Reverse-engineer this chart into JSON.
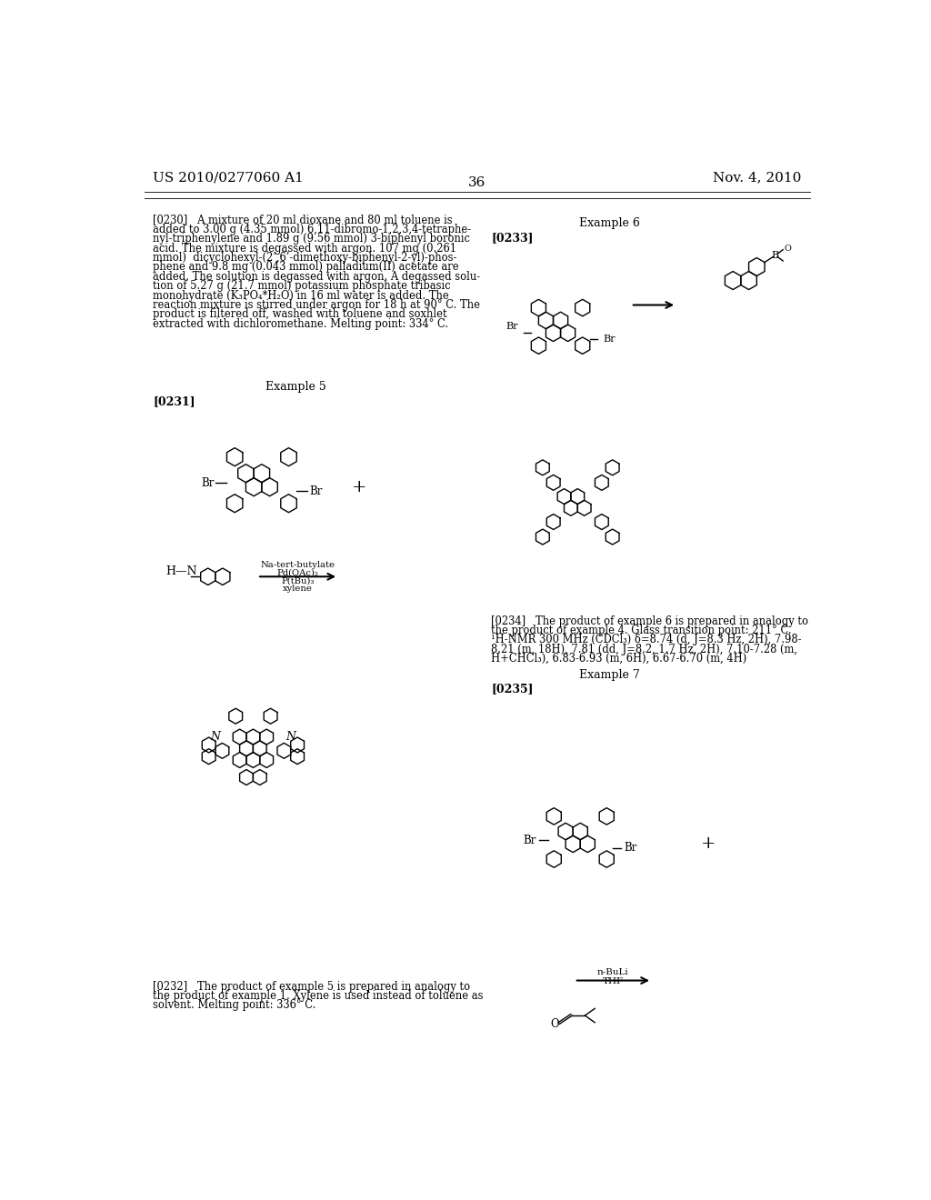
{
  "title_left": "US 2010/0277060 A1",
  "title_right": "Nov. 4, 2010",
  "page_number": "36",
  "background": "#ffffff",
  "para_0230_lines": [
    "[0230]   A mixture of 20 ml dioxane and 80 ml toluene is",
    "added to 3.00 g (4.35 mmol) 6,11-dibromo-1,2,3,4-tetraphe-",
    "nyl-triphenylene and 1.89 g (9.56 mmol) 3-biphenyl boronic",
    "acid. The mixture is degassed with argon. 107 mg (0.261",
    "mmol)  dicyclohexyl-(2’,6’-dimethoxy-biphenyl-2-yl)-phos-",
    "phene and 9.8 mg (0.043 mmol) palladium(II) acetate are",
    "added. The solution is degassed with argon. A degassed solu-",
    "tion of 5.27 g (21.7 mmol) potassium phosphate tribasic",
    "monohydrate (K₃PO₄*H₂O) in 16 ml water is added. The",
    "reaction mixture is stirred under argon for 18 h at 90° C. The",
    "product is filtered off, washed with toluene and soxhlet",
    "extracted with dichloromethane. Melting point: 334° C."
  ],
  "example5_label": "Example 5",
  "para_0231_label": "[0231]",
  "example6_label": "Example 6",
  "para_0233_label": "[0233]",
  "para_0234_lines": [
    "[0234]   The product of example 6 is prepared in analogy to",
    "the product of example 4. Glass transition point: 211° C.",
    "¹H-NMR 300 MHz (CDCl₃) δ=8.74 (d, J=8.3 Hz, 2H), 7.98-",
    "8.21 (m, 18H), 7.81 (dd, J=8.2, 1.7 Hz, 2H), 7.10-7.28 (m,",
    "H+CHCl₃), 6.83-6.93 (m, 6H), 6.67-6.70 (m, 4H)"
  ],
  "example7_label": "Example 7",
  "para_0235_label": "[0235]",
  "para_0232_lines": [
    "[0232]   The product of example 5 is prepared in analogy to",
    "the product of example 1. Xylene is used instead of toluene as",
    "solvent. Melting point: 336° C."
  ],
  "arrow1_labels": [
    "Na-tert-butylate",
    "Pd(OAc)₂",
    "P(tBu)₃",
    "xylene"
  ],
  "arrow2_labels": [
    "n-BuLi",
    "THF"
  ]
}
